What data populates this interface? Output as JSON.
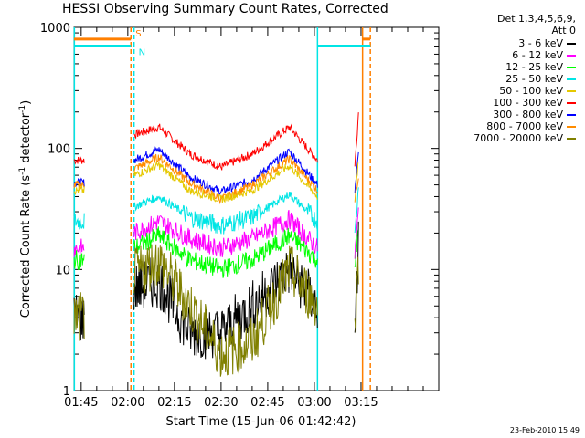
{
  "chart_data": {
    "type": "line",
    "title": "HESSI Observing Summary Count Rates, Corrected",
    "xlabel": "Start Time (15-Jun-06 01:42:42)",
    "ylabel_parts": {
      "main": "Corrected Count Rate (s",
      "sup1": "-1",
      "mid": " detector",
      "sup2": "-1",
      "end": ")"
    },
    "x_ticks": [
      "01:45",
      "02:00",
      "02:15",
      "02:30",
      "02:45",
      "03:00",
      "03:15"
    ],
    "x_tick_minutes": [
      105,
      120,
      135,
      150,
      165,
      180,
      195
    ],
    "x_range_minutes": [
      102.7,
      220
    ],
    "y_scale": "log",
    "y_ticks": [
      "1",
      "10",
      "100",
      "1000"
    ],
    "ylim": [
      1,
      1000
    ],
    "legend_header": [
      "Det 1,3,4,5,6,9,",
      "Att 0"
    ],
    "gaps": [
      [
        106.0,
        122.0
      ],
      [
        181.0,
        193.0
      ]
    ],
    "data_segments": [
      {
        "x_start": 102.7,
        "x_end": 106.0
      },
      {
        "x_start": 122.0,
        "x_end": 181.0
      },
      {
        "x_start": 193.0,
        "x_end": 194.2
      }
    ],
    "flag_labels": {
      "saa": "S",
      "night": "N"
    },
    "flag_bars": [
      {
        "label": "S",
        "color": "#ff7f00",
        "y_value": 800,
        "segments": [
          [
            102.7,
            121.0
          ],
          [
            195.5,
            198.0
          ]
        ]
      },
      {
        "label": "N",
        "color": "#00e5e5",
        "y_value": 700,
        "segments": [
          [
            102.7,
            121.0
          ],
          [
            181.0,
            198.0
          ]
        ]
      }
    ],
    "vertical_markers": [
      {
        "x": 102.8,
        "color": "#00e5e5",
        "style": "solid"
      },
      {
        "x": 121.0,
        "color": "#ff7f00",
        "style": "dashed"
      },
      {
        "x": 122.0,
        "color": "#00e5e5",
        "style": "dashed"
      },
      {
        "x": 181.0,
        "color": "#00e5e5",
        "style": "solid"
      },
      {
        "x": 195.5,
        "color": "#ff7f00",
        "style": "solid"
      },
      {
        "x": 198.0,
        "color": "#ff7f00",
        "style": "dashed"
      }
    ],
    "series": [
      {
        "name": "3 - 6 keV",
        "color": "#000000",
        "start_value": 4,
        "values_at": [
          [
            122,
            7
          ],
          [
            130,
            8
          ],
          [
            140,
            3
          ],
          [
            150,
            3
          ],
          [
            160,
            5
          ],
          [
            172,
            10
          ],
          [
            181,
            5
          ],
          [
            193,
            2
          ],
          [
            194.2,
            20
          ]
        ]
      },
      {
        "name": "6 - 12 keV",
        "color": "#ff00ff",
        "start_value": 15,
        "values_at": [
          [
            122,
            20
          ],
          [
            130,
            25
          ],
          [
            140,
            18
          ],
          [
            150,
            15
          ],
          [
            160,
            18
          ],
          [
            172,
            26
          ],
          [
            181,
            15
          ],
          [
            193,
            13
          ],
          [
            194.2,
            30
          ]
        ]
      },
      {
        "name": "12 - 25 keV",
        "color": "#00ff00",
        "start_value": 12,
        "values_at": [
          [
            122,
            15
          ],
          [
            130,
            19
          ],
          [
            140,
            12
          ],
          [
            150,
            10
          ],
          [
            160,
            12
          ],
          [
            172,
            19
          ],
          [
            181,
            12
          ],
          [
            193,
            9
          ],
          [
            194.2,
            25
          ]
        ]
      },
      {
        "name": "25 - 50 keV",
        "color": "#00e5e5",
        "start_value": 25,
        "values_at": [
          [
            122,
            33
          ],
          [
            130,
            40
          ],
          [
            140,
            27
          ],
          [
            150,
            23
          ],
          [
            160,
            27
          ],
          [
            172,
            42
          ],
          [
            181,
            25
          ],
          [
            193,
            18
          ],
          [
            194.2,
            50
          ]
        ]
      },
      {
        "name": "50 - 100 keV",
        "color": "#e5c800",
        "start_value": 45,
        "values_at": [
          [
            122,
            60
          ],
          [
            130,
            73
          ],
          [
            140,
            45
          ],
          [
            150,
            38
          ],
          [
            160,
            45
          ],
          [
            172,
            72
          ],
          [
            181,
            40
          ],
          [
            193,
            35
          ],
          [
            194.2,
            80
          ]
        ]
      },
      {
        "name": "100 - 300 keV",
        "color": "#ff0000",
        "start_value": 80,
        "values_at": [
          [
            122,
            130
          ],
          [
            130,
            150
          ],
          [
            140,
            90
          ],
          [
            150,
            70
          ],
          [
            160,
            90
          ],
          [
            172,
            150
          ],
          [
            181,
            80
          ],
          [
            193,
            70
          ],
          [
            194.2,
            200
          ]
        ]
      },
      {
        "name": "300 - 800 keV",
        "color": "#0000ff",
        "start_value": 52,
        "values_at": [
          [
            122,
            80
          ],
          [
            130,
            98
          ],
          [
            140,
            58
          ],
          [
            150,
            44
          ],
          [
            160,
            55
          ],
          [
            172,
            95
          ],
          [
            181,
            50
          ],
          [
            193,
            45
          ],
          [
            194.2,
            90
          ]
        ]
      },
      {
        "name": "800 - 7000 keV",
        "color": "#ff8c00",
        "start_value": 50,
        "values_at": [
          [
            122,
            68
          ],
          [
            130,
            85
          ],
          [
            140,
            52
          ],
          [
            150,
            38
          ],
          [
            160,
            50
          ],
          [
            172,
            82
          ],
          [
            181,
            45
          ],
          [
            193,
            38
          ],
          [
            194.2,
            60
          ]
        ]
      },
      {
        "name": "7000 - 20000 keV",
        "color": "#808000",
        "start_value": 4,
        "values_at": [
          [
            122,
            9
          ],
          [
            130,
            12
          ],
          [
            140,
            5
          ],
          [
            150,
            2
          ],
          [
            160,
            2.5
          ],
          [
            172,
            10
          ],
          [
            181,
            5
          ],
          [
            193,
            3
          ],
          [
            194.2,
            12
          ]
        ]
      }
    ]
  },
  "footer": {
    "date": "23-Feb-2010 15:49"
  }
}
